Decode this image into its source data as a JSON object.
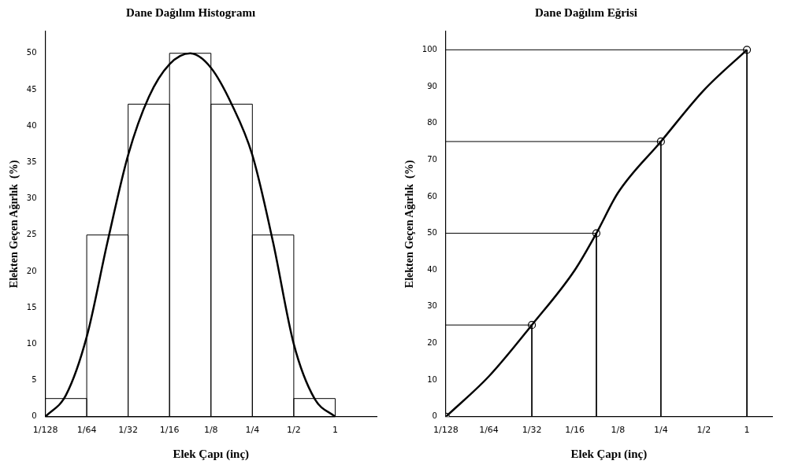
{
  "chart_data": [
    {
      "type": "histogram",
      "title": "Dane Dağılım Histogramı",
      "xlabel": "Elek Çapı (inç)",
      "ylabel": "Elekten Geçen Ağırlık  (%)",
      "log": "x",
      "bins": [
        0.0078125,
        0.015625,
        0.03125,
        0.0625,
        0.125,
        0.25,
        0.5,
        1
      ],
      "values": [
        2.5,
        25,
        43,
        50,
        43,
        25,
        2.5
      ],
      "color": "#000000",
      "series": [
        {
          "type": "line",
          "color": "#000000",
          "marker": "none",
          "x": [
            0.0078125,
            0.01105,
            0.015625,
            0.0221,
            0.03125,
            0.0442,
            0.0625,
            0.0884,
            0.125,
            0.1768,
            0.25,
            0.3536,
            0.5,
            0.7071,
            1
          ],
          "values": [
            0,
            3,
            11,
            24,
            36,
            44,
            48.5,
            50,
            48,
            43,
            36,
            24,
            10,
            2.5,
            0
          ]
        }
      ],
      "xlim": [
        0.0078125,
        2
      ],
      "xticks": [
        {
          "value": 0.0078125,
          "label": "1/128"
        },
        {
          "value": 0.015625,
          "label": "1/64"
        },
        {
          "value": 0.03125,
          "label": "1/32"
        },
        {
          "value": 0.0625,
          "label": "1/16"
        },
        {
          "value": 0.125,
          "label": "1/8"
        },
        {
          "value": 0.25,
          "label": "1/4"
        },
        {
          "value": 0.5,
          "label": "1/2"
        },
        {
          "value": 1,
          "label": "1"
        }
      ],
      "ylim": [
        0,
        53
      ],
      "yticks": [
        0,
        5,
        10,
        15,
        20,
        25,
        30,
        35,
        40,
        45,
        50
      ]
    },
    {
      "type": "line",
      "title": "Dane Dağılım Eğrisi",
      "xlabel": "Elek Çapı (inç)",
      "ylabel": "Elekten Geçen Ağırlık  (%)",
      "log": "x",
      "series": [
        {
          "type": "line",
          "color": "#000000",
          "marker": "none",
          "x": [
            0.0078125,
            0.015625,
            0.03125,
            0.0625,
            0.0884,
            0.125,
            0.25,
            0.5,
            1
          ],
          "values": [
            0,
            11,
            25,
            40,
            50,
            61,
            75,
            89,
            100
          ]
        },
        {
          "type": "line",
          "color": "#000000",
          "marker": "none",
          "x": [
            0.0078125,
            0.03125,
            0.03125
          ],
          "values": [
            25,
            25,
            0
          ]
        },
        {
          "type": "line",
          "color": "#000000",
          "marker": "none",
          "x": [
            0.0078125,
            0.0884,
            0.0884
          ],
          "values": [
            50,
            50,
            0
          ]
        },
        {
          "type": "line",
          "color": "#000000",
          "marker": "none",
          "x": [
            0.0078125,
            0.25,
            0.25
          ],
          "values": [
            75,
            75,
            0
          ]
        },
        {
          "type": "line",
          "color": "#000000",
          "marker": "none",
          "x": [
            0.0078125,
            1,
            1
          ],
          "values": [
            100,
            100,
            0
          ]
        },
        {
          "type": "scatter",
          "color": "#000000",
          "marker": "circle",
          "x": [
            0.0078125,
            0.03125,
            0.0884,
            0.25,
            1
          ],
          "values": [
            0,
            25,
            50,
            75,
            100
          ]
        }
      ],
      "xlim": [
        0.0078125,
        1.5
      ],
      "xticks": [
        {
          "value": 0.0078125,
          "label": "1/128"
        },
        {
          "value": 0.015625,
          "label": "1/64"
        },
        {
          "value": 0.03125,
          "label": "1/32"
        },
        {
          "value": 0.0625,
          "label": "1/16"
        },
        {
          "value": 0.125,
          "label": "1/8"
        },
        {
          "value": 0.25,
          "label": "1/4"
        },
        {
          "value": 0.5,
          "label": "1/2"
        },
        {
          "value": 1,
          "label": "1"
        }
      ],
      "ylim": [
        0,
        105
      ],
      "yticks": [
        0,
        10,
        20,
        30,
        40,
        50,
        60,
        70,
        80,
        90,
        100
      ]
    }
  ]
}
